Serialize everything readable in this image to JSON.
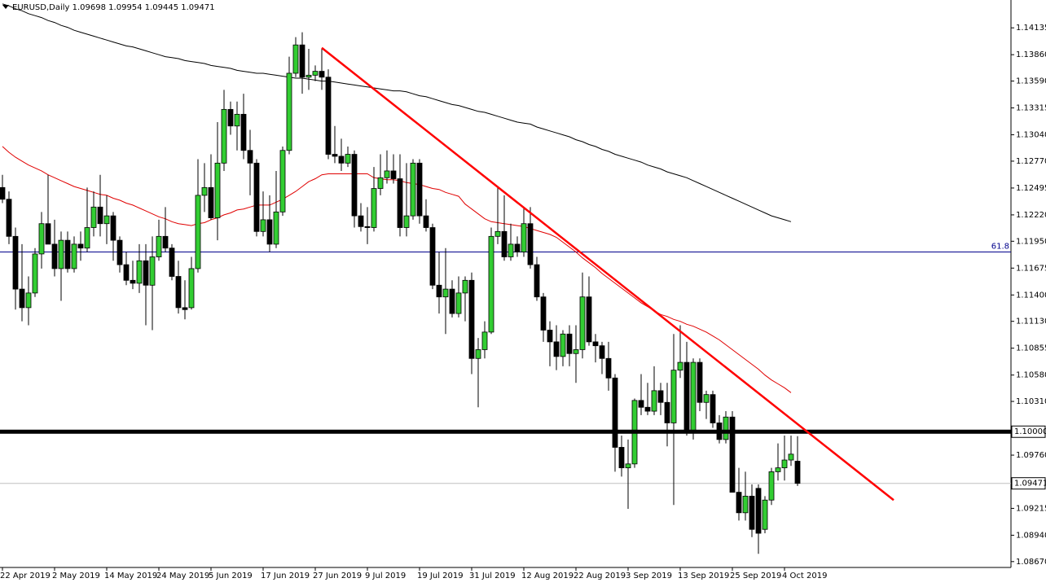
{
  "chart_data": {
    "type": "candlestick",
    "symbol": "EURUSD,Daily",
    "up_color": "#32cd32",
    "down_color": "#000000",
    "ylim": [
      1.0861,
      1.1442
    ],
    "yticks": [
      1.14135,
      {
        "value": 1.1386,
        "label": "1.13860"
      },
      {
        "value": 1.1359,
        "label": "1.13590"
      },
      1.13315,
      {
        "value": 1.1304,
        "label": "1.13040"
      },
      {
        "value": 1.1277,
        "label": "1.12770"
      },
      1.12495,
      {
        "value": 1.1222,
        "label": "1.12220"
      },
      {
        "value": 1.1195,
        "label": "1.11950"
      },
      1.11675,
      {
        "value": 1.114,
        "label": "1.11400"
      },
      {
        "value": 1.1113,
        "label": "1.11130"
      },
      1.10855,
      {
        "value": 1.1058,
        "label": "1.10580"
      },
      {
        "value": 1.1031,
        "label": "1.10310"
      },
      {
        "value": 1.0976,
        "label": "1.09760"
      },
      1.09215,
      {
        "value": 1.0894,
        "label": "1.08940"
      },
      {
        "value": 1.0867,
        "label": "1.08670"
      }
    ],
    "grid": false,
    "categories": [
      "22 Apr 2019",
      null,
      null,
      null,
      null,
      null,
      null,
      null,
      "2 May 2019",
      null,
      null,
      null,
      null,
      null,
      null,
      null,
      "14 May 2019",
      null,
      null,
      null,
      null,
      null,
      null,
      null,
      "24 May 2019",
      null,
      null,
      null,
      null,
      null,
      null,
      null,
      "5 Jun 2019",
      null,
      null,
      null,
      null,
      null,
      null,
      null,
      "17 Jun 2019",
      null,
      null,
      null,
      null,
      null,
      null,
      null,
      "27 Jun 2019",
      null,
      null,
      null,
      null,
      null,
      null,
      null,
      "9 Jul 2019",
      null,
      null,
      null,
      null,
      null,
      null,
      null,
      "19 Jul 2019",
      null,
      null,
      null,
      null,
      null,
      null,
      null,
      "31 Jul 2019",
      null,
      null,
      null,
      null,
      null,
      null,
      null,
      "12 Aug 2019",
      null,
      null,
      null,
      null,
      null,
      null,
      null,
      "22 Aug 2019",
      null,
      null,
      null,
      null,
      null,
      null,
      null,
      "3 Sep 2019",
      null,
      null,
      null,
      null,
      null,
      null,
      null,
      "13 Sep 2019",
      null,
      null,
      null,
      null,
      null,
      null,
      null,
      "25 Sep 2019",
      null,
      null,
      null,
      null,
      null,
      null,
      null,
      "4 Oct 2019",
      null,
      null
    ],
    "ohlc": [
      [
        1.125,
        1.1263,
        1.1234,
        1.1238
      ],
      [
        1.1238,
        1.1246,
        1.1192,
        1.12
      ],
      [
        1.12,
        1.1209,
        1.1125,
        1.1146
      ],
      [
        1.1146,
        1.1192,
        1.1113,
        1.1127
      ],
      [
        1.1127,
        1.1159,
        1.1109,
        1.1142
      ],
      [
        1.1142,
        1.1188,
        1.1138,
        1.1182
      ],
      [
        1.1182,
        1.1225,
        1.1167,
        1.1213
      ],
      [
        1.1213,
        1.1263,
        1.1192,
        1.1192
      ],
      [
        1.1192,
        1.1217,
        1.1159,
        1.1167
      ],
      [
        1.1167,
        1.1205,
        1.1134,
        1.1196
      ],
      [
        1.1196,
        1.1205,
        1.1163,
        1.1167
      ],
      [
        1.1167,
        1.12,
        1.1163,
        1.1192
      ],
      [
        1.1192,
        1.1205,
        1.1175,
        1.1188
      ],
      [
        1.1188,
        1.125,
        1.1184,
        1.1209
      ],
      [
        1.1209,
        1.1246,
        1.12,
        1.123
      ],
      [
        1.123,
        1.1263,
        1.12,
        1.1213
      ],
      [
        1.1213,
        1.1242,
        1.1192,
        1.1221
      ],
      [
        1.1221,
        1.1225,
        1.1175,
        1.1196
      ],
      [
        1.1196,
        1.12,
        1.1163,
        1.1171
      ],
      [
        1.1171,
        1.1184,
        1.115,
        1.1155
      ],
      [
        1.1155,
        1.1175,
        1.1146,
        1.1152
      ],
      [
        1.1152,
        1.1192,
        1.1142,
        1.1175
      ],
      [
        1.1175,
        1.1192,
        1.1109,
        1.115
      ],
      [
        1.115,
        1.12,
        1.1104,
        1.1179
      ],
      [
        1.1179,
        1.1217,
        1.1175,
        1.12
      ],
      [
        1.12,
        1.123,
        1.1184,
        1.1188
      ],
      [
        1.1188,
        1.1192,
        1.1155,
        1.1159
      ],
      [
        1.1159,
        1.1175,
        1.1121,
        1.1127
      ],
      [
        1.1127,
        1.1155,
        1.1115,
        1.1125
      ],
      [
        1.1127,
        1.1179,
        1.1125,
        1.1167
      ],
      [
        1.1167,
        1.1279,
        1.1163,
        1.1242
      ],
      [
        1.1242,
        1.1275,
        1.1225,
        1.125
      ],
      [
        1.125,
        1.1284,
        1.1217,
        1.1219
      ],
      [
        1.1219,
        1.1317,
        1.1196,
        1.1275
      ],
      [
        1.1275,
        1.135,
        1.1267,
        1.133
      ],
      [
        1.133,
        1.1338,
        1.1304,
        1.1313
      ],
      [
        1.1313,
        1.1338,
        1.1288,
        1.1325
      ],
      [
        1.1325,
        1.1346,
        1.1279,
        1.1288
      ],
      [
        1.1288,
        1.1309,
        1.1242,
        1.1275
      ],
      [
        1.1275,
        1.1279,
        1.12,
        1.1205
      ],
      [
        1.1205,
        1.1246,
        1.12,
        1.1217
      ],
      [
        1.1217,
        1.1242,
        1.1184,
        1.1192
      ],
      [
        1.1192,
        1.1267,
        1.1188,
        1.1225
      ],
      [
        1.1225,
        1.1292,
        1.1221,
        1.1288
      ],
      [
        1.1288,
        1.1384,
        1.1284,
        1.1367
      ],
      [
        1.1367,
        1.1404,
        1.1363,
        1.1396
      ],
      [
        1.1396,
        1.1409,
        1.1346,
        1.1363
      ],
      [
        1.1363,
        1.1392,
        1.135,
        1.1365
      ],
      [
        1.1365,
        1.1375,
        1.1359,
        1.1369
      ],
      [
        1.1369,
        1.1392,
        1.135,
        1.1363
      ],
      [
        1.1363,
        1.1371,
        1.1279,
        1.1284
      ],
      [
        1.1284,
        1.1313,
        1.1275,
        1.1282
      ],
      [
        1.1282,
        1.13,
        1.1267,
        1.1275
      ],
      [
        1.1275,
        1.1292,
        1.1271,
        1.1284
      ],
      [
        1.1284,
        1.1288,
        1.1209,
        1.1221
      ],
      [
        1.1221,
        1.1234,
        1.1205,
        1.121
      ],
      [
        1.121,
        1.123,
        1.1192,
        1.1209
      ],
      [
        1.1209,
        1.1271,
        1.1205,
        1.1249
      ],
      [
        1.1249,
        1.1284,
        1.1242,
        1.126
      ],
      [
        1.126,
        1.1288,
        1.1254,
        1.1267
      ],
      [
        1.1267,
        1.1284,
        1.1254,
        1.1259
      ],
      [
        1.1259,
        1.1284,
        1.12,
        1.1209
      ],
      [
        1.1209,
        1.1275,
        1.12,
        1.1221
      ],
      [
        1.1221,
        1.1279,
        1.1217,
        1.1275
      ],
      [
        1.1275,
        1.1279,
        1.1213,
        1.1221
      ],
      [
        1.1221,
        1.1238,
        1.1205,
        1.1209
      ],
      [
        1.1209,
        1.1213,
        1.1146,
        1.115
      ],
      [
        1.115,
        1.1184,
        1.1121,
        1.1138
      ],
      [
        1.1138,
        1.1188,
        1.11,
        1.1146
      ],
      [
        1.1146,
        1.1155,
        1.1117,
        1.1121
      ],
      [
        1.1121,
        1.1159,
        1.1117,
        1.1142
      ],
      [
        1.1142,
        1.1159,
        1.1113,
        1.1155
      ],
      [
        1.1155,
        1.1163,
        1.1059,
        1.1075
      ],
      [
        1.1075,
        1.1096,
        1.1025,
        1.1084
      ],
      [
        1.1084,
        1.1113,
        1.1075,
        1.1102
      ],
      [
        1.1102,
        1.1209,
        1.11,
        1.12
      ],
      [
        1.12,
        1.125,
        1.1192,
        1.1205
      ],
      [
        1.1205,
        1.1242,
        1.1175,
        1.1179
      ],
      [
        1.1179,
        1.1213,
        1.1175,
        1.1192
      ],
      [
        1.1192,
        1.12,
        1.1179,
        1.1184
      ],
      [
        1.1184,
        1.123,
        1.1179,
        1.1213
      ],
      [
        1.1213,
        1.123,
        1.1167,
        1.1171
      ],
      [
        1.1171,
        1.1179,
        1.1134,
        1.1138
      ],
      [
        1.1138,
        1.1142,
        1.1092,
        1.1104
      ],
      [
        1.1104,
        1.1113,
        1.1067,
        1.1092
      ],
      [
        1.1092,
        1.1109,
        1.1063,
        1.1077
      ],
      [
        1.1077,
        1.1104,
        1.1067,
        1.11
      ],
      [
        1.11,
        1.1109,
        1.1067,
        1.108
      ],
      [
        1.108,
        1.1109,
        1.105,
        1.1084
      ],
      [
        1.1084,
        1.1163,
        1.1075,
        1.1138
      ],
      [
        1.1138,
        1.1159,
        1.1088,
        1.1092
      ],
      [
        1.1092,
        1.11,
        1.1071,
        1.1088
      ],
      [
        1.1088,
        1.1092,
        1.1059,
        1.1075
      ],
      [
        1.1075,
        1.1092,
        1.1042,
        1.1055
      ],
      [
        1.1055,
        1.1059,
        1.0959,
        1.0984
      ],
      [
        1.0984,
        1.0996,
        1.0954,
        1.0963
      ],
      [
        1.0963,
        1.0992,
        1.0921,
        1.0967
      ],
      [
        1.0967,
        1.1034,
        1.0963,
        1.1032
      ],
      [
        1.1032,
        1.1059,
        1.1017,
        1.1025
      ],
      [
        1.1025,
        1.105,
        1.1017,
        1.1021
      ],
      [
        1.1021,
        1.1067,
        1.1017,
        1.1042
      ],
      [
        1.1042,
        1.105,
        1.1017,
        1.103
      ],
      [
        1.103,
        1.105,
        1.0985,
        1.1009
      ],
      [
        1.1009,
        1.11,
        1.0925,
        1.1063
      ],
      [
        1.1063,
        1.1109,
        1.1055,
        1.1071
      ],
      [
        1.1071,
        1.1092,
        1.0996,
        1.1
      ],
      [
        1.1,
        1.1075,
        1.0992,
        1.1071
      ],
      [
        1.1071,
        1.1075,
        1.1021,
        1.103
      ],
      [
        1.103,
        1.1042,
        1.1013,
        1.1038
      ],
      [
        1.1038,
        1.1042,
        1.1004,
        1.1009
      ],
      [
        1.1009,
        1.1017,
        1.0988,
        1.0992
      ],
      [
        1.0992,
        1.1021,
        1.0988,
        1.1015
      ],
      [
        1.1015,
        1.1021,
        1.0938,
        1.0938
      ],
      [
        1.0938,
        1.0963,
        1.0909,
        1.0917
      ],
      [
        1.0917,
        1.0959,
        1.0909,
        1.0934
      ],
      [
        1.0934,
        1.0946,
        1.0892,
        1.09
      ],
      [
        1.0942,
        1.0946,
        1.0875,
        1.0896
      ],
      [
        1.09,
        1.0934,
        1.0896,
        1.093
      ],
      [
        1.093,
        1.0963,
        1.0925,
        1.0959
      ],
      [
        1.0959,
        1.0988,
        1.095,
        1.0963
      ],
      [
        1.0963,
        1.0996,
        1.095,
        1.0971
      ],
      [
        1.0971,
        1.0996,
        1.0965,
        1.0977
      ],
      [
        1.09698,
        1.09954,
        1.09445,
        1.09471
      ]
    ],
    "series": [
      {
        "color": "#000000",
        "values": [
          1.1438,
          1.1436,
          1.1433,
          1.1431,
          1.1428,
          1.1426,
          1.1424,
          1.1421,
          1.1419,
          1.1416,
          1.1414,
          1.1411,
          1.1409,
          1.1407,
          1.1405,
          1.1403,
          1.1401,
          1.1399,
          1.1397,
          1.1395,
          1.1394,
          1.1392,
          1.139,
          1.1388,
          1.1386,
          1.1384,
          1.1383,
          1.1382,
          1.138,
          1.1379,
          1.1378,
          1.1377,
          1.1375,
          1.1374,
          1.1373,
          1.1372,
          1.137,
          1.1369,
          1.1368,
          1.1367,
          1.1367,
          1.1366,
          1.1365,
          1.1364,
          1.1363,
          1.1362,
          1.1362,
          1.1361,
          1.136,
          1.1359,
          1.1359,
          1.1358,
          1.1357,
          1.1356,
          1.1355,
          1.1354,
          1.1353,
          1.1352,
          1.1351,
          1.135,
          1.1349,
          1.1349,
          1.1348,
          1.1346,
          1.1344,
          1.1343,
          1.1341,
          1.1339,
          1.1337,
          1.1335,
          1.1334,
          1.1332,
          1.133,
          1.1328,
          1.1327,
          1.1325,
          1.1323,
          1.1321,
          1.1319,
          1.1317,
          1.1316,
          1.1315,
          1.1312,
          1.131,
          1.1308,
          1.1306,
          1.1304,
          1.1302,
          1.1299,
          1.1297,
          1.1294,
          1.1292,
          1.1289,
          1.1287,
          1.1284,
          1.1282,
          1.128,
          1.1278,
          1.1276,
          1.1273,
          1.1271,
          1.1269,
          1.1266,
          1.1264,
          1.1262,
          1.126,
          1.1257,
          1.1254,
          1.1251,
          1.1248,
          1.1245,
          1.1242,
          1.1239,
          1.1236,
          1.1233,
          1.123,
          1.1227,
          1.1224,
          1.1221,
          1.1219,
          1.1217,
          1.1215,
          null
        ]
      },
      {
        "color": "#e00000",
        "values": [
          1.1292,
          1.1286,
          1.1281,
          1.1277,
          1.1273,
          1.127,
          1.1267,
          1.1263,
          1.126,
          1.1257,
          1.1254,
          1.1251,
          1.1249,
          1.1247,
          1.1245,
          1.1243,
          1.1242,
          1.1239,
          1.1237,
          1.1234,
          1.1232,
          1.1229,
          1.1226,
          1.1223,
          1.122,
          1.1218,
          1.1215,
          1.1213,
          1.1212,
          1.1211,
          1.1213,
          1.1214,
          1.1217,
          1.1219,
          1.1222,
          1.1224,
          1.1227,
          1.1228,
          1.123,
          1.1232,
          1.1232,
          1.1232,
          1.1235,
          1.1238,
          1.1242,
          1.1246,
          1.1251,
          1.1256,
          1.1259,
          1.1263,
          1.1264,
          1.1264,
          1.1264,
          1.1264,
          1.1264,
          1.1264,
          1.1264,
          1.126,
          1.1259,
          1.1258,
          1.1258,
          1.1257,
          1.1255,
          1.1254,
          1.1253,
          1.1251,
          1.1249,
          1.1248,
          1.1245,
          1.1243,
          1.1241,
          1.1233,
          1.1228,
          1.1223,
          1.1218,
          1.1215,
          1.1214,
          1.1213,
          1.1212,
          1.1211,
          1.121,
          1.1208,
          1.1206,
          1.1204,
          1.1202,
          1.1199,
          1.1194,
          1.1189,
          1.1184,
          1.1178,
          1.1173,
          1.1168,
          1.1162,
          1.1157,
          1.1152,
          1.1147,
          1.1142,
          1.1137,
          1.1132,
          1.1128,
          1.1124,
          1.112,
          1.1118,
          1.1115,
          1.1113,
          1.111,
          1.1108,
          1.1105,
          1.1102,
          1.1098,
          1.1094,
          1.1089,
          1.1084,
          1.1079,
          1.1074,
          1.1069,
          1.1064,
          1.1058,
          1.1053,
          1.1049,
          1.1045,
          1.104,
          null
        ]
      }
    ],
    "trendline": {
      "color": "#ff0000",
      "values": [
        1.1393,
        1.093
      ]
    },
    "level": {
      "value": 1.1,
      "label": "1.10000",
      "color": "#000000"
    },
    "fibo": {
      "value": 1.1184,
      "label": "61.8",
      "color": "#00008b"
    }
  }
}
